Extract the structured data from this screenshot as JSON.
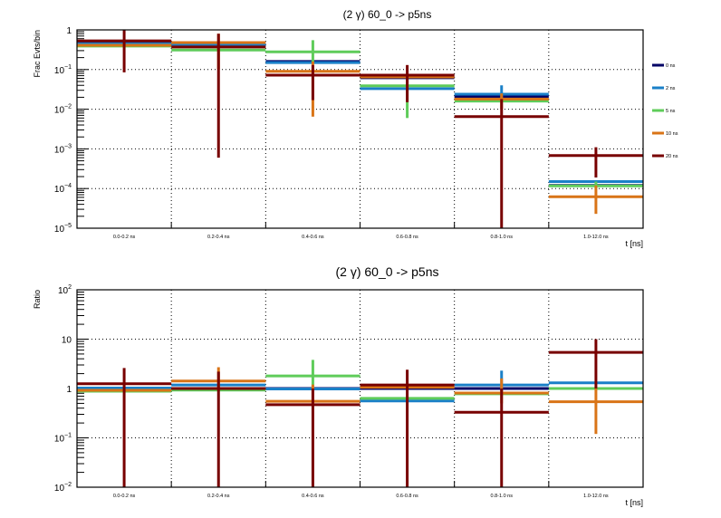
{
  "chart_data": [
    {
      "type": "bar",
      "title": "(2 γ) 60_0 -> p5ns",
      "xlabel": "t [ns]",
      "ylabel": "Frac Evts/bin",
      "yscale": "log",
      "ylim": [
        1e-05,
        1
      ],
      "grid": true,
      "legend_placement": "right",
      "categories": [
        "0.0-0.2 ns",
        "0.2-0.4 ns",
        "0.4-0.6 ns",
        "0.6-0.8 ns",
        "0.8-1.0 ns",
        "1.0-12.0 ns"
      ],
      "yticks": [
        {
          "base": "1",
          "exp": ""
        },
        {
          "base": "10",
          "exp": "−1"
        },
        {
          "base": "10",
          "exp": "−2"
        },
        {
          "base": "10",
          "exp": "−3"
        },
        {
          "base": "10",
          "exp": "−4"
        },
        {
          "base": "10",
          "exp": "−5"
        }
      ],
      "ytick_values": [
        1,
        0.1,
        0.01,
        0.001,
        0.0001,
        1e-05
      ],
      "series": [
        {
          "name": "0 ns",
          "color": "#000066",
          "values": [
            0.48,
            0.45,
            0.16,
            0.062,
            0.021,
            0.00012
          ],
          "errors": [
            null,
            null,
            null,
            null,
            null,
            null
          ]
        },
        {
          "name": "2 ns",
          "color": "#1a80c8",
          "values": [
            0.45,
            0.41,
            0.15,
            0.033,
            0.024,
            0.00015
          ],
          "errors": [
            null,
            null,
            null,
            null,
            [
              0.015,
              0.04
            ],
            null
          ]
        },
        {
          "name": "5 ns",
          "color": "#5fcc5a",
          "values": [
            0.39,
            0.31,
            0.28,
            0.039,
            0.016,
            0.000117
          ],
          "errors": [
            null,
            null,
            [
              0.15,
              0.55
            ],
            [
              0.006,
              0.06
            ],
            null,
            [
              0.0001,
              0.00015
            ]
          ]
        },
        {
          "name": "10 ns",
          "color": "#d97417",
          "values": [
            0.41,
            0.48,
            0.09,
            0.065,
            0.018,
            6.2e-05
          ],
          "errors": [
            null,
            [
              0.1,
              0.8
            ],
            [
              0.0065,
              0.16
            ],
            null,
            [
              0.01,
              0.025
            ],
            [
              2.3e-05,
              0.00012
            ]
          ]
        },
        {
          "name": "20 ns",
          "color": "#780000",
          "values": [
            0.53,
            0.37,
            0.072,
            0.072,
            0.0065,
            0.00068
          ],
          "errors": [
            [
              0.085,
              1
            ],
            [
              0.0006,
              0.8
            ],
            [
              0.017,
              0.13
            ],
            [
              0.015,
              0.13
            ],
            [
              1e-05,
              0.018
            ],
            [
              0.00019,
              0.0011
            ]
          ]
        }
      ]
    },
    {
      "type": "bar",
      "title": "(2 γ) 60_0 -> p5ns",
      "xlabel": "t [ns]",
      "ylabel": "Ratio",
      "yscale": "log",
      "ylim": [
        0.01,
        100
      ],
      "grid": true,
      "categories": [
        "0.0-0.2 ns",
        "0.2-0.4 ns",
        "0.4-0.6 ns",
        "0.6-0.8 ns",
        "0.8-1.0 ns",
        "1.0-12.0 ns"
      ],
      "yticks": [
        {
          "base": "10",
          "exp": "2"
        },
        {
          "base": "10",
          "exp": ""
        },
        {
          "base": "1",
          "exp": ""
        },
        {
          "base": "10",
          "exp": "−1"
        },
        {
          "base": "10",
          "exp": "−2"
        }
      ],
      "ytick_values": [
        100,
        10,
        1,
        0.1,
        0.01
      ],
      "series": [
        {
          "name": "0 ns",
          "color": "#000066",
          "values": [
            1,
            1,
            1,
            1,
            1,
            1
          ],
          "errors": [
            null,
            null,
            null,
            null,
            null,
            null
          ]
        },
        {
          "name": "2 ns",
          "color": "#1a80c8",
          "values": [
            1.02,
            1.18,
            0.98,
            0.56,
            1.18,
            1.3
          ],
          "errors": [
            null,
            null,
            null,
            null,
            [
              0.9,
              2.3
            ],
            null
          ]
        },
        {
          "name": "5 ns",
          "color": "#5fcc5a",
          "values": [
            0.88,
            0.93,
            1.8,
            0.63,
            0.78,
            1.0
          ],
          "errors": [
            null,
            null,
            [
              0.9,
              3.8
            ],
            null,
            null,
            null
          ]
        },
        {
          "name": "10 ns",
          "color": "#d97417",
          "values": [
            0.92,
            1.42,
            0.55,
            1.06,
            0.81,
            0.54
          ],
          "errors": [
            null,
            [
              1.0,
              2.7
            ],
            [
              0.5,
              1.2
            ],
            null,
            [
              0.5,
              1.6
            ],
            [
              0.12,
              1.0
            ]
          ]
        },
        {
          "name": "20 ns",
          "color": "#780000",
          "values": [
            1.25,
            1.0,
            0.47,
            1.18,
            0.33,
            5.4
          ],
          "errors": [
            [
              0.01,
              2.6
            ],
            [
              0.01,
              2.2
            ],
            [
              0.01,
              1.0
            ],
            [
              0.01,
              2.4
            ],
            [
              0.01,
              1.0
            ],
            [
              1.0,
              10
            ]
          ]
        }
      ]
    }
  ]
}
